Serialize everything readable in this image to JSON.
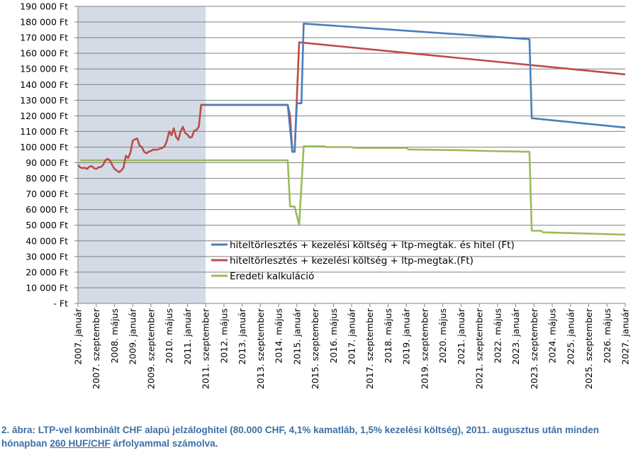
{
  "chart_data": {
    "type": "line",
    "x_unit": "months since 2007. január",
    "x_range": [
      0,
      240
    ],
    "ylim": [
      0,
      190000
    ],
    "y_step": 10000,
    "y_suffix": " Ft",
    "zero_label": "-   Ft",
    "grid": true,
    "legend_position": "center-left",
    "shaded_region": {
      "from": 0,
      "to": 56,
      "color": "#d3dce6"
    },
    "x_tick_step_months": 8,
    "x_labels": [
      "2007. január",
      "2007. szeptember",
      "2008. május",
      "2009. január",
      "2009. szeptember",
      "2010. május",
      "2011. január",
      "2011. szeptember",
      "2012. május",
      "2013. január",
      "2013. szeptember",
      "2014. május",
      "2015. január",
      "2015. szeptember",
      "2016. május",
      "2017. január",
      "2017. szeptember",
      "2018. május",
      "2019. január",
      "2019. szeptember",
      "2020. május",
      "2021. január",
      "2021. szeptember",
      "2022. május",
      "2023. január",
      "2023. szeptember",
      "2024. május",
      "2025. január",
      "2025. szeptember",
      "2026. május",
      "2027. január"
    ],
    "series": [
      {
        "name": "hiteltörlesztés + kezelési költség + ltp-megtak. és hitel (Ft)",
        "color": "#4a7ebb",
        "points": [
          [
            56,
            127000
          ],
          [
            92,
            127000
          ],
          [
            94,
            97000
          ],
          [
            95,
            97000
          ],
          [
            96,
            128000
          ],
          [
            98,
            128000
          ],
          [
            99,
            179000
          ],
          [
            198,
            169000
          ],
          [
            199,
            118500
          ],
          [
            240,
            112500
          ]
        ]
      },
      {
        "name": "hiteltörlesztés + kezelési költség + ltp-megtak.(Ft)",
        "color": "#be4b48",
        "points": [
          [
            0,
            88500
          ],
          [
            1,
            87000
          ],
          [
            2,
            86500
          ],
          [
            3,
            86800
          ],
          [
            4,
            86000
          ],
          [
            5,
            87500
          ],
          [
            6,
            87800
          ],
          [
            7,
            86500
          ],
          [
            8,
            86000
          ],
          [
            9,
            87000
          ],
          [
            10,
            87200
          ],
          [
            11,
            88500
          ],
          [
            12,
            91500
          ],
          [
            13,
            92500
          ],
          [
            14,
            91500
          ],
          [
            15,
            88500
          ],
          [
            16,
            86000
          ],
          [
            17,
            85000
          ],
          [
            18,
            84000
          ],
          [
            19,
            85000
          ],
          [
            20,
            87000
          ],
          [
            21,
            94500
          ],
          [
            22,
            93000
          ],
          [
            23,
            96500
          ],
          [
            24,
            104000
          ],
          [
            25,
            105000
          ],
          [
            26,
            105500
          ],
          [
            27,
            101000
          ],
          [
            28,
            100000
          ],
          [
            29,
            97000
          ],
          [
            30,
            96000
          ],
          [
            31,
            97000
          ],
          [
            32,
            97500
          ],
          [
            33,
            98500
          ],
          [
            34,
            98200
          ],
          [
            35,
            98500
          ],
          [
            36,
            99000
          ],
          [
            37,
            99500
          ],
          [
            38,
            100500
          ],
          [
            39,
            104000
          ],
          [
            40,
            110000
          ],
          [
            41,
            107500
          ],
          [
            42,
            112000
          ],
          [
            43,
            106500
          ],
          [
            44,
            104500
          ],
          [
            45,
            110000
          ],
          [
            46,
            113000
          ],
          [
            47,
            109000
          ],
          [
            48,
            108000
          ],
          [
            49,
            106000
          ],
          [
            50,
            106500
          ],
          [
            51,
            110500
          ],
          [
            52,
            111000
          ],
          [
            53,
            113000
          ],
          [
            54,
            127000
          ],
          [
            92,
            127000
          ],
          [
            93,
            120000
          ],
          [
            94,
            97000
          ],
          [
            95,
            97000
          ],
          [
            97,
            167000
          ],
          [
            240,
            146500
          ]
        ]
      },
      {
        "name": "Eredeti kalkuláció",
        "color": "#9bbb59",
        "points": [
          [
            1,
            91500
          ],
          [
            92,
            91500
          ],
          [
            93,
            62000
          ],
          [
            95,
            62000
          ],
          [
            97,
            50000
          ],
          [
            99,
            100500
          ],
          [
            108,
            100500
          ],
          [
            109,
            100000
          ],
          [
            120,
            100000
          ],
          [
            121,
            99500
          ],
          [
            144,
            99500
          ],
          [
            145,
            98500
          ],
          [
            168,
            98000
          ],
          [
            180,
            97500
          ],
          [
            198,
            97000
          ],
          [
            199,
            46500
          ],
          [
            203,
            46500
          ],
          [
            204,
            45500
          ],
          [
            240,
            44000
          ]
        ]
      }
    ]
  },
  "caption": {
    "text_before": "2. ábra: LTP-vel kombinált CHF alapú jelzáloghitel (80.000 CHF, 4,1% kamatláb, 1,5% kezelési költség), 2011. augusztus után minden hónapban ",
    "link": "260 HUF/CHF",
    "text_after": " árfolyammal számolva."
  }
}
